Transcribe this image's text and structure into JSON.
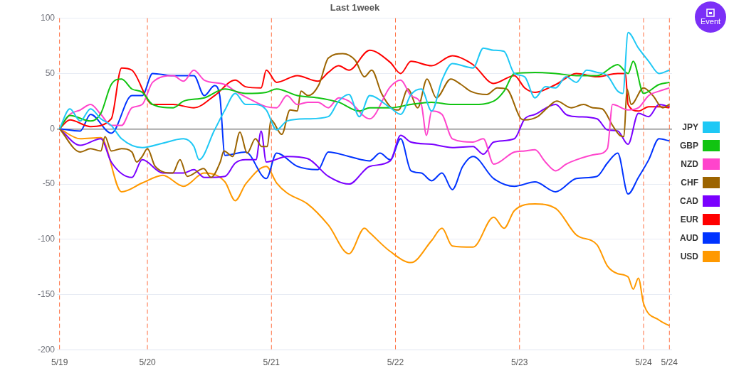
{
  "chart_data": {
    "type": "line",
    "title": "Last 1week",
    "annotations": [
      "Event"
    ],
    "xlim": [
      "--05-19T06:30",
      "--05-24T05:30"
    ],
    "xticks": [
      {
        "value": "--05-19T07:00",
        "label": "5/19"
      },
      {
        "value": "--05-20",
        "label": "5/20"
      },
      {
        "value": "--05-21",
        "label": "5/21"
      },
      {
        "value": "--05-22",
        "label": "5/22"
      },
      {
        "value": "--05-23",
        "label": "5/23"
      },
      {
        "value": "--05-24",
        "label": "5/24"
      },
      {
        "value": "--05-24T05:00",
        "label": "5/24"
      }
    ],
    "ylim": [
      -200,
      100
    ],
    "yticks": [
      -200,
      -150,
      -100,
      -50,
      0,
      50,
      100
    ],
    "grid": "y",
    "legend": "right",
    "marker": "none",
    "line_style": "solid",
    "ref_lines": [
      {
        "axis": "x",
        "value": "--05-19T07:00",
        "color": "#ff7043",
        "line_style": "dashed"
      },
      {
        "axis": "x",
        "value": "--05-20",
        "color": "#ff7043",
        "line_style": "dashed"
      },
      {
        "axis": "x",
        "value": "--05-21",
        "color": "#ff7043",
        "line_style": "dashed"
      },
      {
        "axis": "x",
        "value": "--05-22",
        "color": "#ff7043",
        "line_style": "dashed"
      },
      {
        "axis": "x",
        "value": "--05-23",
        "color": "#ff7043",
        "line_style": "dashed"
      },
      {
        "axis": "x",
        "value": "--05-24",
        "color": "#ff7043",
        "line_style": "dashed"
      },
      {
        "axis": "x",
        "value": "--05-24T05:00",
        "color": "#ff7043",
        "line_style": "dashed"
      }
    ],
    "series": [
      {
        "name": "JPY",
        "color": "#1ec8f5",
        "x": [
          "--05-19T07:00",
          "--05-19T09:00",
          "--05-19T11:00",
          "--05-19T13:00",
          "--05-19T15:00",
          "--05-19T17:00",
          "--05-19T19:00",
          "--05-19T23:00",
          "--05-20T03:00",
          "--05-20T07:00",
          "--05-20T09:00",
          "--05-20T10:00",
          "--05-20T13:00",
          "--05-20T15:00",
          "--05-20T17:00",
          "--05-20T19:00",
          "--05-20T21:00",
          "--05-20T23:00",
          "--05-21T01:00",
          "--05-21T03:00",
          "--05-21T07:00",
          "--05-21T11:00",
          "--05-21T13:00",
          "--05-21T15:00",
          "--05-21T17:00",
          "--05-21T19:00",
          "--05-21T23:00",
          "--05-22T01:00",
          "--05-22T03:00",
          "--05-22T05:00",
          "--05-22T07:00",
          "--05-22T09:00",
          "--05-22T11:00",
          "--05-22T15:00",
          "--05-22T17:00",
          "--05-22T19:00",
          "--05-22T21:00",
          "--05-22T23:00",
          "--05-23T01:00",
          "--05-23T03:00",
          "--05-23T05:00",
          "--05-23T07:00",
          "--05-23T09:00",
          "--05-23T11:00",
          "--05-23T13:00",
          "--05-23T15:00",
          "--05-23T17:00",
          "--05-23T19:00",
          "--05-23T20:00",
          "--05-23T21:00",
          "--05-23T23:00",
          "--05-24T01:00",
          "--05-24T03:00",
          "--05-24T05:00"
        ],
        "values": [
          0,
          18,
          7,
          18,
          9,
          3,
          -9,
          -17,
          -13,
          -9,
          -16,
          -28,
          -1,
          17,
          32,
          22,
          22,
          17,
          -1,
          7,
          9,
          11,
          25,
          31,
          11,
          30,
          19,
          13,
          31,
          36,
          16,
          44,
          59,
          55,
          73,
          71,
          70,
          50,
          47,
          28,
          38,
          37,
          47,
          42,
          53,
          51,
          48,
          34,
          32,
          87,
          73,
          61,
          50,
          53
        ]
      },
      {
        "name": "GBP",
        "color": "#11c411",
        "x": [
          "--05-19T07:00",
          "--05-19T09:00",
          "--05-19T13:00",
          "--05-19T15:00",
          "--05-19T17:00",
          "--05-19T19:00",
          "--05-19T21:00",
          "--05-19T23:00",
          "--05-20T01:00",
          "--05-20T05:00",
          "--05-20T07:00",
          "--05-20T11:00",
          "--05-20T15:00",
          "--05-20T19:00",
          "--05-20T23:00",
          "--05-21T01:00",
          "--05-21T05:00",
          "--05-21T09:00",
          "--05-21T13:00",
          "--05-21T17:00",
          "--05-21T19:00",
          "--05-21T23:00",
          "--05-22T03:00",
          "--05-22T07:00",
          "--05-22T11:00",
          "--05-22T15:00",
          "--05-22T19:00",
          "--05-22T21:00",
          "--05-22T23:00",
          "--05-23T03:00",
          "--05-23T07:00",
          "--05-23T11:00",
          "--05-23T15:00",
          "--05-23T19:00",
          "--05-23T21:00",
          "--05-23T22:00",
          "--05-24T00:00",
          "--05-24T03:00",
          "--05-24T05:00"
        ],
        "values": [
          0,
          12,
          7,
          14,
          40,
          45,
          36,
          33,
          22,
          19,
          25,
          28,
          36,
          32,
          33,
          36,
          30,
          28,
          24,
          16,
          19,
          19,
          22,
          24,
          22,
          22,
          25,
          34,
          50,
          51,
          50,
          48,
          48,
          58,
          50,
          61,
          32,
          40,
          42
        ]
      },
      {
        "name": "NZD",
        "color": "#ff44cc",
        "x": [
          "--05-19T07:00",
          "--05-19T09:00",
          "--05-19T11:00",
          "--05-19T13:00",
          "--05-19T15:00",
          "--05-19T17:00",
          "--05-19T19:00",
          "--05-19T21:00",
          "--05-19T23:00",
          "--05-20T01:00",
          "--05-20T05:00",
          "--05-20T07:00",
          "--05-20T09:00",
          "--05-20T11:00",
          "--05-20T15:00",
          "--05-20T17:00",
          "--05-20T21:00",
          "--05-20T23:00",
          "--05-21T01:00",
          "--05-21T03:00",
          "--05-21T05:00",
          "--05-21T07:00",
          "--05-21T09:00",
          "--05-21T11:00",
          "--05-21T13:00",
          "--05-21T15:00",
          "--05-21T19:00",
          "--05-21T23:00",
          "--05-22T01:00",
          "--05-22T03:00",
          "--05-22T05:00",
          "--05-22T06:00",
          "--05-22T07:00",
          "--05-22T09:00",
          "--05-22T11:00",
          "--05-22T15:00",
          "--05-22T17:00",
          "--05-22T19:00",
          "--05-22T23:00",
          "--05-23T01:00",
          "--05-23T03:00",
          "--05-23T05:00",
          "--05-23T07:00",
          "--05-23T09:00",
          "--05-23T11:00",
          "--05-23T15:00",
          "--05-23T17:00",
          "--05-23T18:00",
          "--05-23T21:00",
          "--05-23T23:00",
          "--05-24T01:00",
          "--05-24T03:00",
          "--05-24T05:00"
        ],
        "values": [
          0,
          13,
          17,
          22,
          13,
          3,
          3,
          19,
          22,
          42,
          48,
          43,
          53,
          44,
          40,
          34,
          24,
          20,
          19,
          30,
          22,
          24,
          24,
          19,
          28,
          25,
          9,
          38,
          44,
          30,
          22,
          -6,
          16,
          13,
          -9,
          -12,
          -9,
          -32,
          -21,
          -20,
          -19,
          -30,
          -38,
          -32,
          -28,
          -23,
          -18,
          22,
          17,
          19,
          30,
          34,
          37
        ]
      },
      {
        "name": "CHF",
        "color": "#9c6400",
        "x": [
          "--05-19T07:00",
          "--05-19T11:00",
          "--05-19T13:00",
          "--05-19T15:00",
          "--05-19T15:48",
          "--05-19T17:00",
          "--05-19T19:00",
          "--05-19T21:00",
          "--05-19T21:54",
          "--05-19T23:00",
          "--05-20T00:00",
          "--05-20T01:30",
          "--05-20T04:54",
          "--05-20T06:18",
          "--05-20T07:42",
          "--05-20T10:54",
          "--05-20T12:18",
          "--05-20T14:06",
          "--05-20T14:48",
          "--05-20T16:30",
          "--05-20T17:54",
          "--05-20T19:18",
          "--05-20T20:54",
          "--05-20T22:06",
          "--05-20T23:12",
          "--05-20T23:54",
          "--05-21T02:00",
          "--05-21T03:36",
          "--05-21T05:00",
          "--05-21T05:42",
          "--05-21T07:06",
          "--05-21T09:12",
          "--05-21T11:00",
          "--05-21T13:48",
          "--05-21T16:12",
          "--05-21T18:00",
          "--05-21T19:24",
          "--05-21T21:18",
          "--05-21T23:12",
          "--05-22T00:36",
          "--05-22T02:24",
          "--05-22T04:18",
          "--05-22T06:06",
          "--05-22T07:54",
          "--05-22T10:42",
          "--05-22T12:42",
          "--05-22T14:30",
          "--05-22T17:42",
          "--05-22T19:42",
          "--05-22T21:30",
          "--05-23T00:18",
          "--05-23T01:00",
          "--05-23T03:30",
          "--05-23T05:24",
          "--05-23T07:12",
          "--05-23T10:00",
          "--05-23T12:24",
          "--05-23T14:12",
          "--05-23T16:00",
          "--05-23T18:00",
          "--05-23T19:24",
          "--05-23T20:12",
          "--05-23T20:48",
          "--05-23T21:36",
          "--05-24T00:00",
          "--05-24T01:48",
          "--05-24T03:42",
          "--05-24T05:00"
        ],
        "values": [
          0,
          -21,
          -18,
          -20,
          -7,
          -20,
          -18,
          -21,
          -30,
          -25,
          -18,
          -34,
          -40,
          -28,
          -43,
          -36,
          -44,
          -30,
          -20,
          -25,
          -3,
          -22,
          -9,
          -16,
          -16,
          8,
          -5,
          17,
          16,
          34,
          30,
          40,
          64,
          68,
          62,
          47,
          53,
          32,
          19,
          17,
          36,
          19,
          45,
          28,
          45,
          40,
          34,
          31,
          37,
          36,
          9,
          8,
          11,
          19,
          25,
          19,
          22,
          19,
          18,
          3,
          -6,
          -7,
          36,
          22,
          37,
          30,
          19,
          22
        ]
      },
      {
        "name": "CAD",
        "color": "#7a00ff",
        "x": [
          "--05-19T07:00",
          "--05-19T11:00",
          "--05-19T15:00",
          "--05-19T17:00",
          "--05-19T21:00",
          "--05-19T23:00",
          "--05-20T03:00",
          "--05-20T07:00",
          "--05-20T09:00",
          "--05-20T11:00",
          "--05-20T15:00",
          "--05-20T17:00",
          "--05-20T19:00",
          "--05-20T21:00",
          "--05-20T22:00",
          "--05-20T23:00",
          "--05-21T03:00",
          "--05-21T07:00",
          "--05-21T11:00",
          "--05-21T15:00",
          "--05-21T19:00",
          "--05-21T23:00",
          "--05-22T01:00",
          "--05-22T03:00",
          "--05-22T07:00",
          "--05-22T11:00",
          "--05-22T15:00",
          "--05-22T17:00",
          "--05-22T19:00",
          "--05-22T23:00",
          "--05-23T01:00",
          "--05-23T03:00",
          "--05-23T07:00",
          "--05-23T09:00",
          "--05-23T11:00",
          "--05-23T15:00",
          "--05-23T17:00",
          "--05-23T19:00",
          "--05-23T21:00",
          "--05-23T23:00",
          "--05-24T01:00",
          "--05-24T03:00",
          "--05-24T05:00"
        ],
        "values": [
          0,
          -15,
          -9,
          -30,
          -44,
          -28,
          -40,
          -40,
          -37,
          -44,
          -43,
          -31,
          -28,
          -28,
          -2,
          -30,
          -25,
          -27,
          -43,
          -50,
          -34,
          -29,
          -6,
          -12,
          -14,
          -17,
          -16,
          -23,
          -12,
          -9,
          9,
          13,
          22,
          13,
          11,
          9,
          -1,
          -2,
          -14,
          14,
          11,
          22,
          20
        ]
      },
      {
        "name": "EUR",
        "color": "#ff0000",
        "x": [
          "--05-19T07:00",
          "--05-19T09:00",
          "--05-19T13:00",
          "--05-19T17:00",
          "--05-19T19:00",
          "--05-19T21:00",
          "--05-20T01:00",
          "--05-20T05:00",
          "--05-20T09:00",
          "--05-20T13:00",
          "--05-20T17:00",
          "--05-20T19:00",
          "--05-20T22:00",
          "--05-20T23:00",
          "--05-21T01:00",
          "--05-21T05:00",
          "--05-21T09:00",
          "--05-21T11:00",
          "--05-21T13:00",
          "--05-21T15:00",
          "--05-21T19:00",
          "--05-21T23:00",
          "--05-22T01:00",
          "--05-22T03:00",
          "--05-22T07:00",
          "--05-22T11:00",
          "--05-22T15:00",
          "--05-22T19:00",
          "--05-22T23:00",
          "--05-23T01:00",
          "--05-23T03:00",
          "--05-23T07:00",
          "--05-23T11:00",
          "--05-23T15:00",
          "--05-23T19:00",
          "--05-23T20:30",
          "--05-23T21:00",
          "--05-23T23:00",
          "--05-24T01:00",
          "--05-24T03:00",
          "--05-24T05:00"
        ],
        "values": [
          0,
          8,
          2,
          9,
          55,
          53,
          22,
          22,
          19,
          30,
          44,
          38,
          37,
          53,
          42,
          48,
          43,
          51,
          57,
          53,
          71,
          60,
          50,
          61,
          57,
          66,
          58,
          41,
          48,
          37,
          33,
          40,
          50,
          47,
          50,
          50,
          22,
          16,
          20,
          20,
          19
        ]
      },
      {
        "name": "AUD",
        "color": "#0033ff",
        "x": [
          "--05-19T07:00",
          "--05-19T11:00",
          "--05-19T13:00",
          "--05-19T17:00",
          "--05-19T21:00",
          "--05-19T23:00",
          "--05-20T01:00",
          "--05-20T05:00",
          "--05-20T09:00",
          "--05-20T11:00",
          "--05-20T13:00",
          "--05-20T14:00",
          "--05-20T15:00",
          "--05-20T19:00",
          "--05-20T23:00",
          "--05-21T01:00",
          "--05-21T05:00",
          "--05-21T09:00",
          "--05-21T11:00",
          "--05-21T15:00",
          "--05-21T19:00",
          "--05-21T21:00",
          "--05-21T23:00",
          "--05-22T01:00",
          "--05-22T03:00",
          "--05-22T05:00",
          "--05-22T07:00",
          "--05-22T09:00",
          "--05-22T11:00",
          "--05-22T13:00",
          "--05-22T15:00",
          "--05-22T19:00",
          "--05-22T23:00",
          "--05-23T03:00",
          "--05-23T07:00",
          "--05-23T11:00",
          "--05-23T15:00",
          "--05-23T17:00",
          "--05-23T19:00",
          "--05-23T21:00",
          "--05-23T23:00",
          "--05-24T01:00",
          "--05-24T03:00",
          "--05-24T05:00"
        ],
        "values": [
          0,
          -2,
          13,
          -4,
          30,
          30,
          50,
          48,
          48,
          30,
          39,
          30,
          -24,
          -21,
          -45,
          -22,
          -34,
          -37,
          -21,
          -25,
          -29,
          -22,
          -28,
          -9,
          -38,
          -40,
          -47,
          -40,
          -55,
          -34,
          -25,
          -45,
          -52,
          -48,
          -57,
          -45,
          -43,
          -31,
          -22,
          -59,
          -44,
          -28,
          -9,
          -11
        ]
      },
      {
        "name": "USD",
        "color": "#ff9900",
        "x": [
          "--05-19T07:00",
          "--05-19T11:00",
          "--05-19T15:00",
          "--05-19T19:00",
          "--05-19T23:00",
          "--05-20T03:00",
          "--05-20T07:00",
          "--05-20T11:00",
          "--05-20T15:00",
          "--05-20T17:00",
          "--05-20T19:00",
          "--05-20T23:00",
          "--05-21T01:00",
          "--05-21T03:00",
          "--05-21T07:00",
          "--05-21T11:00",
          "--05-21T15:00",
          "--05-21T18:00",
          "--05-21T19:00",
          "--05-21T23:00",
          "--05-22T03:00",
          "--05-22T07:00",
          "--05-22T09:00",
          "--05-22T11:00",
          "--05-22T15:00",
          "--05-22T19:00",
          "--05-22T21:00",
          "--05-22T23:00",
          "--05-23T03:00",
          "--05-23T07:00",
          "--05-23T11:00",
          "--05-23T15:00",
          "--05-23T17:00",
          "--05-23T19:00",
          "--05-23T21:00",
          "--05-23T22:00",
          "--05-23T23:00",
          "--05-24T00:00",
          "--05-24T03:00",
          "--05-24T05:00"
        ],
        "values": [
          0,
          -9,
          -8,
          -57,
          -49,
          -42,
          -52,
          -40,
          -48,
          -65,
          -50,
          -34,
          -49,
          -58,
          -68,
          -87,
          -113,
          -90,
          -94,
          -111,
          -121,
          -101,
          -90,
          -106,
          -107,
          -80,
          -90,
          -74,
          -68,
          -72,
          -96,
          -105,
          -124,
          -131,
          -134,
          -145,
          -135,
          -158,
          -173,
          -178
        ]
      }
    ]
  }
}
